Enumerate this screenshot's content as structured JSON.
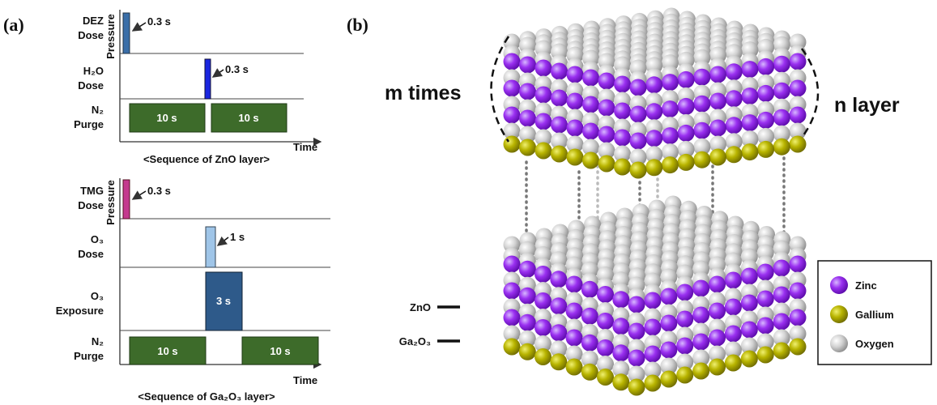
{
  "panel_a": {
    "label": "(a)",
    "zno": {
      "y_axis": "Pressure",
      "x_axis": "Time",
      "caption": "<Sequence of ZnO layer>",
      "rows": [
        [
          "DEZ",
          "Dose"
        ],
        [
          "H₂O",
          "Dose"
        ],
        [
          "N₂",
          "Purge"
        ]
      ],
      "pulses": [
        "0.3 s",
        "0.3 s",
        "10 s",
        "10 s"
      ]
    },
    "ga2o3": {
      "y_axis": "Pressure",
      "x_axis": "Time",
      "caption": "<Sequence of Ga₂O₃ layer>",
      "rows": [
        [
          "TMG",
          "Dose"
        ],
        [
          "O₃",
          "Dose"
        ],
        [
          "O₃",
          "Exposure"
        ],
        [
          "N₂",
          "Purge"
        ]
      ],
      "pulses": [
        "0.3 s",
        "1 s",
        "3 s",
        "10 s",
        "10 s"
      ]
    }
  },
  "panel_b": {
    "label": "(b)",
    "left_brace": "m times",
    "right_brace": "n layer",
    "layer_labels": [
      "ZnO",
      "Ga₂O₃"
    ],
    "legend": [
      "Zinc",
      "Gallium",
      "Oxygen"
    ]
  }
}
